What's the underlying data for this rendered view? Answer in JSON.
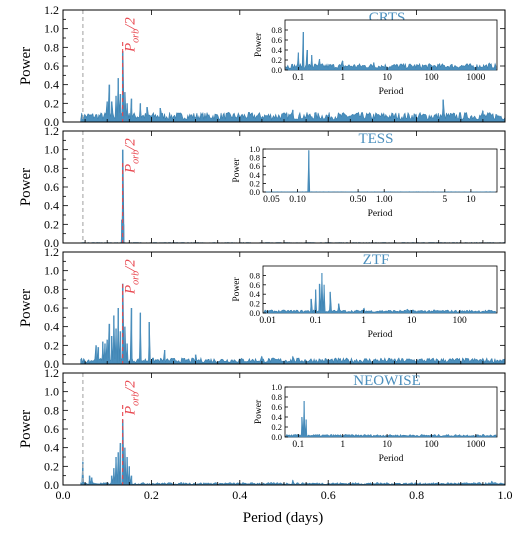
{
  "figure": {
    "xlabel": "Period (days)",
    "ylabel": "Power",
    "porb_label": "P",
    "porb_sub": "orb",
    "porb_suffix": "/2"
  },
  "colors": {
    "spectrum": "#4b8fbd",
    "marker": "#e8474f",
    "reference": "#b0b0b0"
  },
  "chart_data": [
    {
      "type": "area",
      "title": "CRTS",
      "xlabel": "Period (days)",
      "ylabel": "Power",
      "xlim": [
        0,
        1
      ],
      "ylim": [
        0,
        1.2
      ],
      "x_ticks": [
        "0.0",
        "0.2",
        "0.4",
        "0.6",
        "0.8",
        "1.0"
      ],
      "y_ticks": [
        "0.0",
        "0.2",
        "0.4",
        "0.6",
        "0.8",
        "1.0",
        "1.2"
      ],
      "reference_period": 0.045,
      "porb_half": 0.135,
      "peaks": [
        [
          0.1,
          0.22
        ],
        [
          0.105,
          0.4
        ],
        [
          0.11,
          0.22
        ],
        [
          0.12,
          0.28
        ],
        [
          0.125,
          0.47
        ],
        [
          0.13,
          0.3
        ],
        [
          0.135,
          0.76
        ],
        [
          0.14,
          0.32
        ],
        [
          0.145,
          0.2
        ],
        [
          0.155,
          0.25
        ],
        [
          0.175,
          0.2
        ],
        [
          0.19,
          0.16
        ],
        [
          0.22,
          0.15
        ],
        [
          0.52,
          0.13
        ],
        [
          0.57,
          0.1
        ],
        [
          0.86,
          0.24
        ],
        [
          0.95,
          0.12
        ]
      ],
      "noise_level": 0.08,
      "inset": {
        "xlabel": "Period",
        "ylabel": "Power",
        "xscale": "log",
        "x_ticks": [
          "0.1",
          "1",
          "10",
          "100",
          "1000"
        ],
        "y_ticks": [
          "0.0",
          "0.2",
          "0.4",
          "0.6",
          "0.8"
        ],
        "xlim": [
          0.05,
          3000
        ],
        "ylim": [
          0,
          1
        ],
        "peaks": [
          [
            0.1,
            0.35
          ],
          [
            0.13,
            0.76
          ],
          [
            0.16,
            0.4
          ],
          [
            0.2,
            0.3
          ],
          [
            0.3,
            0.22
          ],
          [
            1,
            0.18
          ],
          [
            5,
            0.15
          ],
          [
            20,
            0.12
          ],
          [
            2000,
            0.14
          ]
        ],
        "noise_level": 0.1
      }
    },
    {
      "type": "area",
      "title": "TESS",
      "xlabel": "Period (days)",
      "ylabel": "Power",
      "xlim": [
        0,
        1
      ],
      "ylim": [
        0,
        1.2
      ],
      "x_ticks": [
        "0.0",
        "0.2",
        "0.4",
        "0.6",
        "0.8",
        "1.0"
      ],
      "y_ticks": [
        "0.0",
        "0.2",
        "0.4",
        "0.6",
        "0.8",
        "1.0",
        "1.2"
      ],
      "reference_period": 0.045,
      "porb_half": 0.135,
      "peaks": [
        [
          0.135,
          1.0
        ],
        [
          0.133,
          0.25
        ],
        [
          0.137,
          0.2
        ]
      ],
      "noise_level": 0.004,
      "inset": {
        "xlabel": "Period",
        "ylabel": "Power",
        "xscale": "log",
        "x_ticks": [
          "0.05",
          "0.10",
          "0.50",
          "1.00",
          "5",
          "10"
        ],
        "y_ticks": [
          "0.0",
          "0.2",
          "0.4",
          "0.6",
          "0.8",
          "1.0"
        ],
        "xlim": [
          0.04,
          20
        ],
        "ylim": [
          0,
          1
        ],
        "peaks": [
          [
            0.135,
            0.97
          ]
        ],
        "noise_level": 0.005
      }
    },
    {
      "type": "area",
      "title": "ZTF",
      "xlabel": "Period (days)",
      "ylabel": "Power",
      "xlim": [
        0,
        1
      ],
      "ylim": [
        0,
        1.2
      ],
      "x_ticks": [
        "0.0",
        "0.2",
        "0.4",
        "0.6",
        "0.8",
        "1.0"
      ],
      "y_ticks": [
        "0.0",
        "0.2",
        "0.4",
        "0.6",
        "0.8",
        "1.0",
        "1.2"
      ],
      "reference_period": null,
      "porb_half": 0.135,
      "peaks": [
        [
          0.075,
          0.2
        ],
        [
          0.08,
          0.18
        ],
        [
          0.09,
          0.24
        ],
        [
          0.095,
          0.22
        ],
        [
          0.1,
          0.26
        ],
        [
          0.105,
          0.43
        ],
        [
          0.11,
          0.3
        ],
        [
          0.115,
          0.52
        ],
        [
          0.12,
          0.38
        ],
        [
          0.125,
          0.6
        ],
        [
          0.13,
          0.35
        ],
        [
          0.135,
          0.86
        ],
        [
          0.14,
          0.4
        ],
        [
          0.145,
          0.22
        ],
        [
          0.155,
          0.6
        ],
        [
          0.175,
          0.55
        ],
        [
          0.195,
          0.45
        ],
        [
          0.23,
          0.15
        ],
        [
          0.3,
          0.1
        ],
        [
          0.45,
          0.08
        ],
        [
          0.52,
          0.08
        ],
        [
          0.72,
          0.06
        ]
      ],
      "noise_level": 0.05,
      "inset": {
        "xlabel": "Period",
        "ylabel": "Power",
        "xscale": "log",
        "x_ticks": [
          "0.01",
          "0.1",
          "1",
          "10",
          "100"
        ],
        "y_ticks": [
          "0.0",
          "0.2",
          "0.4",
          "0.6",
          "0.8"
        ],
        "xlim": [
          0.008,
          600
        ],
        "ylim": [
          0,
          1
        ],
        "peaks": [
          [
            0.08,
            0.3
          ],
          [
            0.1,
            0.5
          ],
          [
            0.12,
            0.62
          ],
          [
            0.135,
            0.85
          ],
          [
            0.15,
            0.6
          ],
          [
            0.2,
            0.45
          ],
          [
            0.3,
            0.2
          ],
          [
            1,
            0.1
          ],
          [
            8,
            0.08
          ]
        ],
        "noise_level": 0.05
      }
    },
    {
      "type": "area",
      "title": "NEOWISE",
      "xlabel": "Period (days)",
      "ylabel": "Power",
      "xlim": [
        0,
        1
      ],
      "ylim": [
        0,
        1.2
      ],
      "x_ticks": [
        "0.0",
        "0.2",
        "0.4",
        "0.6",
        "0.8",
        "1.0"
      ],
      "y_ticks": [
        "0.0",
        "0.2",
        "0.4",
        "0.6",
        "0.8",
        "1.0",
        "1.2"
      ],
      "reference_period": 0.045,
      "porb_half": 0.135,
      "peaks": [
        [
          0.045,
          0.25
        ],
        [
          0.06,
          0.1
        ],
        [
          0.065,
          0.08
        ],
        [
          0.11,
          0.1
        ],
        [
          0.115,
          0.18
        ],
        [
          0.12,
          0.3
        ],
        [
          0.125,
          0.35
        ],
        [
          0.13,
          0.45
        ],
        [
          0.135,
          0.7
        ],
        [
          0.14,
          0.4
        ],
        [
          0.145,
          0.3
        ],
        [
          0.15,
          0.2
        ],
        [
          0.155,
          0.1
        ],
        [
          0.52,
          0.05
        ],
        [
          0.97,
          0.04
        ]
      ],
      "noise_level": 0.02,
      "inset": {
        "xlabel": "Period",
        "ylabel": "Power",
        "xscale": "log",
        "x_ticks": [
          "0.1",
          "1",
          "10",
          "100",
          "1000"
        ],
        "y_ticks": [
          "0.0",
          "0.2",
          "0.4",
          "0.6",
          "0.8",
          "1.0"
        ],
        "xlim": [
          0.05,
          3000
        ],
        "ylim": [
          0,
          1
        ],
        "peaks": [
          [
            0.12,
            0.4
          ],
          [
            0.135,
            0.72
          ],
          [
            0.15,
            0.35
          ]
        ],
        "noise_level": 0.04
      }
    }
  ]
}
